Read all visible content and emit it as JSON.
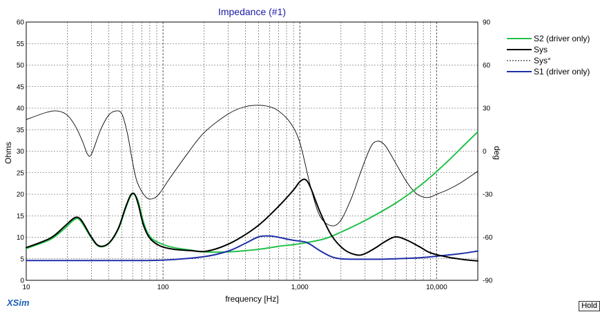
{
  "app": {
    "brand": "XSim"
  },
  "hold_button": {
    "label": "Hold"
  },
  "chart_data": {
    "type": "line",
    "title": "Impedance (#1)",
    "xlabel": "frequency [Hz]",
    "ylabel": "Ohms",
    "y2label": "deg",
    "xscale": "log",
    "xlim": [
      10,
      20000
    ],
    "ylim": [
      0,
      60
    ],
    "y2lim": [
      -90,
      90
    ],
    "grid": true,
    "legend_position": "right",
    "x_ticks": [
      {
        "value": 10,
        "label": "10"
      },
      {
        "value": 100,
        "label": "100"
      },
      {
        "value": 1000,
        "label": "1,000"
      },
      {
        "value": 10000,
        "label": "10,000"
      }
    ],
    "y_ticks": [
      0,
      5,
      10,
      15,
      20,
      25,
      30,
      35,
      40,
      45,
      50,
      55,
      60
    ],
    "y2_ticks": [
      -90,
      -60,
      -30,
      0,
      30,
      60,
      90
    ],
    "series": [
      {
        "name": "S2 (driver only)",
        "color": "#22c04a",
        "style": "solid",
        "axis": "left",
        "width": 2,
        "x": [
          10,
          15,
          19,
          22,
          24,
          26,
          30,
          34,
          40,
          47,
          53,
          58,
          62,
          66,
          72,
          80,
          95,
          120,
          160,
          200,
          300,
          500,
          700,
          1000,
          1500,
          2000,
          3000,
          5000,
          8000,
          12000,
          16000,
          20000
        ],
        "y": [
          7.4,
          9.5,
          12.0,
          13.9,
          14.3,
          13.0,
          9.8,
          7.9,
          8.5,
          11.8,
          16.5,
          19.6,
          19.9,
          18.2,
          13.5,
          10.2,
          8.6,
          7.6,
          7.0,
          6.6,
          6.6,
          7.2,
          7.9,
          8.5,
          9.6,
          11.2,
          13.9,
          17.9,
          22.6,
          27.6,
          31.5,
          34.5
        ]
      },
      {
        "name": "Sys",
        "color": "#000000",
        "style": "solid",
        "axis": "left",
        "width": 2,
        "x": [
          10,
          15,
          19,
          22,
          24,
          26,
          30,
          34,
          40,
          47,
          53,
          58,
          62,
          66,
          72,
          80,
          95,
          120,
          160,
          200,
          260,
          350,
          500,
          700,
          900,
          1000,
          1100,
          1200,
          1400,
          1700,
          2100,
          2600,
          3000,
          3600,
          4200,
          5000,
          6000,
          7500,
          9000,
          12000,
          16000,
          20000
        ],
        "y": [
          7.6,
          9.8,
          12.5,
          14.3,
          14.6,
          13.4,
          10.0,
          8.0,
          8.6,
          12.0,
          16.8,
          19.8,
          20.0,
          17.6,
          12.8,
          9.8,
          8.0,
          7.2,
          6.9,
          6.7,
          7.6,
          9.5,
          12.8,
          17.2,
          21.0,
          22.9,
          23.4,
          21.5,
          16.0,
          10.5,
          7.2,
          5.9,
          6.2,
          7.6,
          9.0,
          10.1,
          9.4,
          7.8,
          6.4,
          5.4,
          4.8,
          4.5
        ]
      },
      {
        "name": "Sys°",
        "color": "#000000",
        "style": "dashed",
        "axis": "right",
        "width": 1,
        "x": [
          10,
          14,
          17,
          20,
          23,
          26,
          28,
          30,
          35,
          40,
          45,
          50,
          55,
          60,
          65,
          75,
          85,
          95,
          110,
          150,
          200,
          300,
          400,
          500,
          600,
          700,
          850,
          1000,
          1200,
          1400,
          1700,
          2000,
          2400,
          2800,
          3300,
          3700,
          4200,
          5000,
          6000,
          7000,
          8000,
          9000,
          10000,
          12000,
          15000,
          20000
        ],
        "y": [
          22,
          27,
          28,
          25,
          17,
          6,
          -2,
          -2,
          15,
          25,
          28,
          26,
          12,
          -8,
          -22,
          -32,
          -33,
          -29,
          -20,
          -2,
          13,
          26,
          31,
          32,
          31,
          28,
          20,
          6,
          -25,
          -45,
          -52,
          -48,
          -32,
          -14,
          3,
          7,
          4,
          -8,
          -21,
          -29,
          -32,
          -32,
          -30,
          -27,
          -22,
          -14
        ]
      },
      {
        "name": "S1 (driver only)",
        "color": "#1c2ea8",
        "style": "solid",
        "axis": "left",
        "width": 2,
        "x": [
          10,
          50,
          100,
          200,
          300,
          400,
          500,
          600,
          700,
          800,
          900,
          1000,
          1100,
          1200,
          1400,
          1700,
          2000,
          2500,
          3000,
          4000,
          5000,
          6000,
          8000,
          10000,
          15000,
          20000
        ],
        "y": [
          4.6,
          4.6,
          4.7,
          5.5,
          6.8,
          8.6,
          10.1,
          10.3,
          10.0,
          9.6,
          9.3,
          9.1,
          8.9,
          8.3,
          6.9,
          5.5,
          5.0,
          4.9,
          4.9,
          4.9,
          5.0,
          5.1,
          5.3,
          5.6,
          6.2,
          6.8
        ]
      }
    ]
  }
}
